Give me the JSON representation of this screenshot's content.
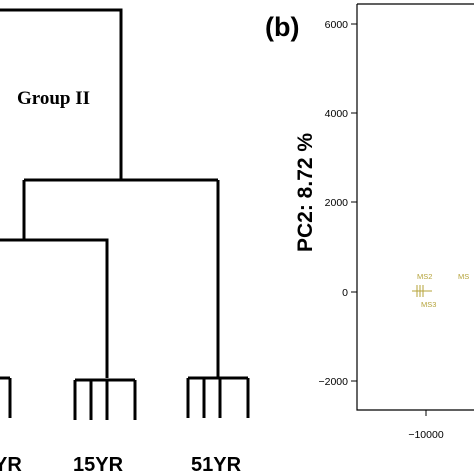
{
  "dendrogram": {
    "group_label": "Group II",
    "leaf_labels": [
      "YR",
      "15YR",
      "51YR"
    ]
  },
  "pca_panel": {
    "panel_label": "(b)",
    "y_axis_label": "PC2: 8.72 %",
    "y_ticks": [
      "6000",
      "4000",
      "2000",
      "0",
      "−2000"
    ],
    "x_ticks": [
      "−10000"
    ],
    "points": [
      {
        "label": "MS2"
      },
      {
        "label": "MS3"
      },
      {
        "label": "MS"
      }
    ],
    "point_color": "#b5a33a"
  }
}
